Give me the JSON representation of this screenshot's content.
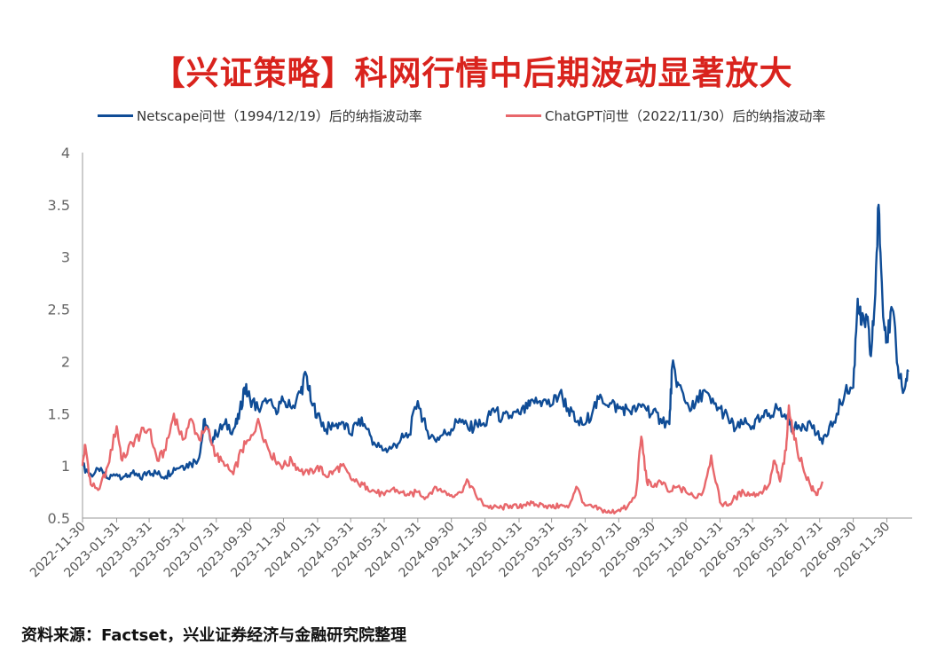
{
  "title": "【兴证策略】科网行情中后期波动显著放大",
  "source": "资料来源：Factset，兴业证券经济与金融研究院整理",
  "chart_data": {
    "type": "line",
    "ylim": [
      0.5,
      4
    ],
    "yticks": [
      "0.5",
      "1",
      "1.5",
      "2",
      "2.5",
      "3",
      "3.5",
      "4"
    ],
    "xlim": [
      "2022-11-30",
      "2027-01-15"
    ],
    "xticks": [
      "2022-11-30",
      "2023-01-31",
      "2023-03-31",
      "2023-05-31",
      "2023-07-31",
      "2023-09-30",
      "2023-11-30",
      "2024-01-31",
      "2024-03-31",
      "2024-05-31",
      "2024-07-31",
      "2024-09-30",
      "2024-11-30",
      "2025-01-31",
      "2025-03-31",
      "2025-05-31",
      "2025-07-31",
      "2025-09-30",
      "2025-11-30",
      "2026-01-31",
      "2026-03-31",
      "2026-05-31",
      "2026-07-31",
      "2026-09-30",
      "2026-11-30"
    ],
    "grid": false,
    "legend_position": "top",
    "series": [
      {
        "name": "Netscape问世（1994/12/19）后的纳指波动率",
        "color": "#0f4c96",
        "points": [
          [
            "2022-11-30",
            1.0
          ],
          [
            "2022-12-15",
            0.92
          ],
          [
            "2022-12-31",
            0.95
          ],
          [
            "2023-01-15",
            0.88
          ],
          [
            "2023-01-31",
            0.92
          ],
          [
            "2023-02-15",
            0.9
          ],
          [
            "2023-02-28",
            0.93
          ],
          [
            "2023-03-15",
            0.88
          ],
          [
            "2023-03-31",
            0.95
          ],
          [
            "2023-04-15",
            0.92
          ],
          [
            "2023-04-30",
            0.9
          ],
          [
            "2023-05-15",
            0.98
          ],
          [
            "2023-05-31",
            1.0
          ],
          [
            "2023-06-15",
            1.02
          ],
          [
            "2023-06-30",
            1.08
          ],
          [
            "2023-07-10",
            1.45
          ],
          [
            "2023-07-20",
            1.25
          ],
          [
            "2023-07-31",
            1.3
          ],
          [
            "2023-08-15",
            1.4
          ],
          [
            "2023-08-31",
            1.35
          ],
          [
            "2023-09-10",
            1.45
          ],
          [
            "2023-09-20",
            1.75
          ],
          [
            "2023-09-30",
            1.65
          ],
          [
            "2023-10-15",
            1.55
          ],
          [
            "2023-10-31",
            1.6
          ],
          [
            "2023-11-15",
            1.55
          ],
          [
            "2023-11-30",
            1.62
          ],
          [
            "2023-12-15",
            1.55
          ],
          [
            "2023-12-31",
            1.7
          ],
          [
            "2024-01-10",
            1.88
          ],
          [
            "2024-01-20",
            1.6
          ],
          [
            "2024-01-31",
            1.5
          ],
          [
            "2024-02-15",
            1.35
          ],
          [
            "2024-02-29",
            1.38
          ],
          [
            "2024-03-15",
            1.42
          ],
          [
            "2024-03-31",
            1.3
          ],
          [
            "2024-04-15",
            1.45
          ],
          [
            "2024-04-30",
            1.35
          ],
          [
            "2024-05-15",
            1.2
          ],
          [
            "2024-05-31",
            1.15
          ],
          [
            "2024-06-15",
            1.18
          ],
          [
            "2024-06-30",
            1.25
          ],
          [
            "2024-07-15",
            1.3
          ],
          [
            "2024-07-31",
            1.62
          ],
          [
            "2024-08-15",
            1.35
          ],
          [
            "2024-08-31",
            1.25
          ],
          [
            "2024-09-15",
            1.3
          ],
          [
            "2024-09-30",
            1.35
          ],
          [
            "2024-10-15",
            1.45
          ],
          [
            "2024-10-31",
            1.35
          ],
          [
            "2024-11-15",
            1.4
          ],
          [
            "2024-11-30",
            1.38
          ],
          [
            "2024-12-15",
            1.55
          ],
          [
            "2024-12-31",
            1.45
          ],
          [
            "2025-01-15",
            1.48
          ],
          [
            "2025-01-31",
            1.5
          ],
          [
            "2025-02-15",
            1.55
          ],
          [
            "2025-02-28",
            1.6
          ],
          [
            "2025-03-15",
            1.62
          ],
          [
            "2025-03-31",
            1.58
          ],
          [
            "2025-04-15",
            1.7
          ],
          [
            "2025-04-30",
            1.55
          ],
          [
            "2025-05-15",
            1.42
          ],
          [
            "2025-05-31",
            1.4
          ],
          [
            "2025-06-15",
            1.55
          ],
          [
            "2025-06-30",
            1.65
          ],
          [
            "2025-07-15",
            1.6
          ],
          [
            "2025-07-31",
            1.55
          ],
          [
            "2025-08-15",
            1.55
          ],
          [
            "2025-08-31",
            1.52
          ],
          [
            "2025-09-15",
            1.58
          ],
          [
            "2025-09-30",
            1.5
          ],
          [
            "2025-10-15",
            1.45
          ],
          [
            "2025-10-31",
            1.4
          ],
          [
            "2025-11-05",
            1.95
          ],
          [
            "2025-11-15",
            1.8
          ],
          [
            "2025-11-30",
            1.6
          ],
          [
            "2025-12-15",
            1.55
          ],
          [
            "2025-12-31",
            1.72
          ],
          [
            "2026-01-15",
            1.6
          ],
          [
            "2026-01-31",
            1.55
          ],
          [
            "2026-02-15",
            1.45
          ],
          [
            "2026-02-28",
            1.35
          ],
          [
            "2026-03-15",
            1.4
          ],
          [
            "2026-03-31",
            1.38
          ],
          [
            "2026-04-15",
            1.45
          ],
          [
            "2026-04-30",
            1.5
          ],
          [
            "2026-05-15",
            1.55
          ],
          [
            "2026-05-31",
            1.45
          ],
          [
            "2026-06-15",
            1.35
          ],
          [
            "2026-06-30",
            1.4
          ],
          [
            "2026-07-15",
            1.4
          ],
          [
            "2026-07-31",
            1.25
          ],
          [
            "2026-08-15",
            1.3
          ],
          [
            "2026-08-31",
            1.5
          ],
          [
            "2026-09-15",
            1.7
          ],
          [
            "2026-09-30",
            1.75
          ],
          [
            "2026-10-08",
            2.6
          ],
          [
            "2026-10-15",
            2.35
          ],
          [
            "2026-10-25",
            2.4
          ],
          [
            "2026-11-01",
            2.05
          ],
          [
            "2026-11-08",
            2.55
          ],
          [
            "2026-11-15",
            3.5
          ],
          [
            "2026-11-22",
            2.6
          ],
          [
            "2026-11-30",
            2.2
          ],
          [
            "2026-12-10",
            2.5
          ],
          [
            "2026-12-20",
            1.95
          ],
          [
            "2026-12-31",
            1.72
          ],
          [
            "2027-01-08",
            1.9
          ]
        ]
      },
      {
        "name": "ChatGPT问世（2022/11/30）后的纳指波动率",
        "color": "#e8676b",
        "points": [
          [
            "2022-11-30",
            1.0
          ],
          [
            "2022-12-05",
            1.2
          ],
          [
            "2022-12-15",
            0.82
          ],
          [
            "2022-12-31",
            0.78
          ],
          [
            "2023-01-15",
            1.0
          ],
          [
            "2023-01-31",
            1.38
          ],
          [
            "2023-02-10",
            1.05
          ],
          [
            "2023-02-28",
            1.22
          ],
          [
            "2023-03-15",
            1.3
          ],
          [
            "2023-03-31",
            1.35
          ],
          [
            "2023-04-15",
            1.05
          ],
          [
            "2023-04-30",
            1.15
          ],
          [
            "2023-05-15",
            1.5
          ],
          [
            "2023-05-31",
            1.25
          ],
          [
            "2023-06-15",
            1.45
          ],
          [
            "2023-06-30",
            1.25
          ],
          [
            "2023-07-15",
            1.35
          ],
          [
            "2023-07-31",
            1.1
          ],
          [
            "2023-08-15",
            1.0
          ],
          [
            "2023-08-31",
            0.92
          ],
          [
            "2023-09-15",
            1.15
          ],
          [
            "2023-09-30",
            1.25
          ],
          [
            "2023-10-15",
            1.45
          ],
          [
            "2023-10-31",
            1.2
          ],
          [
            "2023-11-15",
            1.05
          ],
          [
            "2023-11-30",
            1.0
          ],
          [
            "2023-12-15",
            1.05
          ],
          [
            "2023-12-31",
            0.95
          ],
          [
            "2024-01-15",
            0.92
          ],
          [
            "2024-01-31",
            1.0
          ],
          [
            "2024-02-15",
            0.9
          ],
          [
            "2024-02-29",
            0.95
          ],
          [
            "2024-03-15",
            1.0
          ],
          [
            "2024-03-31",
            0.88
          ],
          [
            "2024-04-15",
            0.82
          ],
          [
            "2024-04-30",
            0.8
          ],
          [
            "2024-05-15",
            0.75
          ],
          [
            "2024-05-31",
            0.72
          ],
          [
            "2024-06-15",
            0.78
          ],
          [
            "2024-06-30",
            0.75
          ],
          [
            "2024-07-15",
            0.72
          ],
          [
            "2024-07-31",
            0.75
          ],
          [
            "2024-08-15",
            0.7
          ],
          [
            "2024-08-31",
            0.8
          ],
          [
            "2024-09-15",
            0.75
          ],
          [
            "2024-09-30",
            0.72
          ],
          [
            "2024-10-15",
            0.75
          ],
          [
            "2024-10-31",
            0.85
          ],
          [
            "2024-11-15",
            0.7
          ],
          [
            "2024-11-30",
            0.62
          ],
          [
            "2024-12-15",
            0.6
          ],
          [
            "2024-12-31",
            0.6
          ],
          [
            "2025-01-15",
            0.62
          ],
          [
            "2025-01-31",
            0.6
          ],
          [
            "2025-02-15",
            0.65
          ],
          [
            "2025-02-28",
            0.62
          ],
          [
            "2025-03-15",
            0.63
          ],
          [
            "2025-03-31",
            0.6
          ],
          [
            "2025-04-15",
            0.62
          ],
          [
            "2025-04-30",
            0.6
          ],
          [
            "2025-05-15",
            0.8
          ],
          [
            "2025-05-31",
            0.62
          ],
          [
            "2025-06-15",
            0.6
          ],
          [
            "2025-06-30",
            0.58
          ],
          [
            "2025-07-15",
            0.55
          ],
          [
            "2025-07-31",
            0.58
          ],
          [
            "2025-08-15",
            0.6
          ],
          [
            "2025-08-31",
            0.72
          ],
          [
            "2025-09-10",
            1.28
          ],
          [
            "2025-09-20",
            0.85
          ],
          [
            "2025-09-30",
            0.8
          ],
          [
            "2025-10-15",
            0.85
          ],
          [
            "2025-10-31",
            0.75
          ],
          [
            "2025-11-15",
            0.8
          ],
          [
            "2025-11-30",
            0.75
          ],
          [
            "2025-12-15",
            0.7
          ],
          [
            "2025-12-31",
            0.75
          ],
          [
            "2026-01-15",
            1.1
          ],
          [
            "2026-01-31",
            0.65
          ],
          [
            "2026-02-15",
            0.62
          ],
          [
            "2026-02-28",
            0.7
          ],
          [
            "2026-03-15",
            0.75
          ],
          [
            "2026-03-31",
            0.72
          ],
          [
            "2026-04-15",
            0.75
          ],
          [
            "2026-04-30",
            0.82
          ],
          [
            "2026-05-10",
            1.05
          ],
          [
            "2026-05-20",
            0.85
          ],
          [
            "2026-05-31",
            1.15
          ],
          [
            "2026-06-05",
            1.58
          ],
          [
            "2026-06-15",
            1.25
          ],
          [
            "2026-06-30",
            1.0
          ],
          [
            "2026-07-15",
            0.8
          ],
          [
            "2026-07-25",
            0.72
          ],
          [
            "2026-08-05",
            0.85
          ]
        ]
      }
    ]
  }
}
